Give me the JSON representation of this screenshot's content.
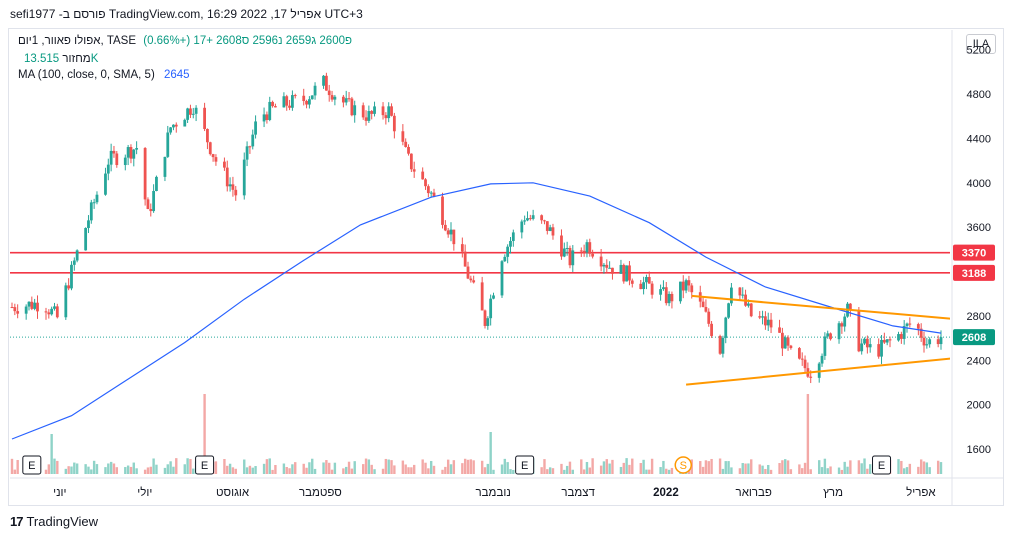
{
  "header": {
    "text": "sefi1977 -פורסם ב TradingView.com, 16:29 2022 ,17 אפריל UTC+3"
  },
  "legend": {
    "name": "אפולו פאוור, 1יום, TASE",
    "ohlc": "פ2600 ג2659 נ2596 ס2608 +17 (+0.66%)",
    "volume_label": "מחזור",
    "volume_value": "13.515K",
    "ma_label": "MA (100, close, 0, SMA, 5)",
    "ma_value": "2645"
  },
  "currency_button": "ILA",
  "footer": {
    "brand": "TradingView",
    "logo": "17"
  },
  "colors": {
    "up": "#26a69a",
    "down": "#ef5350",
    "ma": "#2962ff",
    "hline": "#f23645",
    "trend": "#ff9800"
  },
  "chart_data": {
    "type": "candlestick",
    "y_ticks": [
      "1600",
      "2000",
      "2400",
      "2800",
      "3200",
      "3600",
      "4000",
      "4400",
      "4800",
      "5200"
    ],
    "ylim": [
      1450,
      5250
    ],
    "x_ticks": [
      "יוני",
      "יולי",
      "אוגוסט",
      "ספטמבר",
      "נובמבר",
      "דצמבר",
      "2022",
      "פברואר",
      "מרץ",
      "אפריל"
    ],
    "price_labels": [
      {
        "value": 3370,
        "text": "3370",
        "color": "#f23645"
      },
      {
        "value": 3188,
        "text": "3188",
        "color": "#f23645"
      },
      {
        "value": 2608,
        "text": "2608",
        "color": "#089981"
      }
    ],
    "horizontal_lines": [
      3370,
      3188
    ],
    "last_price": 2608,
    "trendlines": [
      {
        "from": {
          "date": "2022-01-20",
          "price": 2980
        },
        "to": {
          "date": "2022-04-18",
          "price": 2770
        }
      },
      {
        "from": {
          "date": "2022-01-18",
          "price": 2180
        },
        "to": {
          "date": "2022-04-18",
          "price": 2420
        }
      }
    ],
    "events": [
      {
        "date": "2021-06-01",
        "label": "E"
      },
      {
        "date": "2021-08-01",
        "label": "E"
      },
      {
        "date": "2021-11-22",
        "label": "E"
      },
      {
        "date": "2022-01-17",
        "label": "S"
      },
      {
        "date": "2022-03-28",
        "label": "E"
      }
    ],
    "ma_series": [
      [
        "2021-05-25",
        1690
      ],
      [
        "2021-06-15",
        1900
      ],
      [
        "2021-07-05",
        2230
      ],
      [
        "2021-07-25",
        2560
      ],
      [
        "2021-08-15",
        2950
      ],
      [
        "2021-09-05",
        3300
      ],
      [
        "2021-09-25",
        3620
      ],
      [
        "2021-10-20",
        3870
      ],
      [
        "2021-11-10",
        3990
      ],
      [
        "2021-11-25",
        4000
      ],
      [
        "2021-12-15",
        3880
      ],
      [
        "2022-01-05",
        3640
      ],
      [
        "2022-01-25",
        3330
      ],
      [
        "2022-02-15",
        3060
      ],
      [
        "2022-03-10",
        2880
      ],
      [
        "2022-04-01",
        2710
      ],
      [
        "2022-04-18",
        2645
      ]
    ],
    "price_path": [
      [
        "2021-05-25",
        2880
      ],
      [
        "2021-06-05",
        2920
      ],
      [
        "2021-06-10",
        2780
      ],
      [
        "2021-06-18",
        3450
      ],
      [
        "2021-06-28",
        4200
      ],
      [
        "2021-07-08",
        4320
      ],
      [
        "2021-07-12",
        3700
      ],
      [
        "2021-07-20",
        4500
      ],
      [
        "2021-07-28",
        4700
      ],
      [
        "2021-08-05",
        4200
      ],
      [
        "2021-08-12",
        3900
      ],
      [
        "2021-08-20",
        4600
      ],
      [
        "2021-08-28",
        4700
      ],
      [
        "2021-09-05",
        4750
      ],
      [
        "2021-09-12",
        4900
      ],
      [
        "2021-09-20",
        4700
      ],
      [
        "2021-09-28",
        4600
      ],
      [
        "2021-10-05",
        4650
      ],
      [
        "2021-10-12",
        4200
      ],
      [
        "2021-10-20",
        3900
      ],
      [
        "2021-10-28",
        3500
      ],
      [
        "2021-11-03",
        3100
      ],
      [
        "2021-11-08",
        2750
      ],
      [
        "2021-11-14",
        3350
      ],
      [
        "2021-11-22",
        3700
      ],
      [
        "2021-11-30",
        3600
      ],
      [
        "2021-12-08",
        3300
      ],
      [
        "2021-12-14",
        3450
      ],
      [
        "2021-12-22",
        3250
      ],
      [
        "2021-12-30",
        3150
      ],
      [
        "2022-01-06",
        3050
      ],
      [
        "2022-01-12",
        2950
      ],
      [
        "2022-01-18",
        3080
      ],
      [
        "2022-01-24",
        2850
      ],
      [
        "2022-01-30",
        2500
      ],
      [
        "2022-02-03",
        3120
      ],
      [
        "2022-02-10",
        2800
      ],
      [
        "2022-02-18",
        2700
      ],
      [
        "2022-02-25",
        2400
      ],
      [
        "2022-03-03",
        2300
      ],
      [
        "2022-03-10",
        2650
      ],
      [
        "2022-03-16",
        2850
      ],
      [
        "2022-03-20",
        2550
      ],
      [
        "2022-03-26",
        2480
      ],
      [
        "2022-04-02",
        2600
      ],
      [
        "2022-04-08",
        2750
      ],
      [
        "2022-04-13",
        2560
      ],
      [
        "2022-04-18",
        2608
      ]
    ],
    "volume_spikes": [
      {
        "date": "2021-08-01",
        "value": 80
      },
      {
        "date": "2021-11-10",
        "value": 42
      },
      {
        "date": "2021-06-08",
        "value": 40
      },
      {
        "date": "2022-03-02",
        "value": 80
      }
    ]
  }
}
